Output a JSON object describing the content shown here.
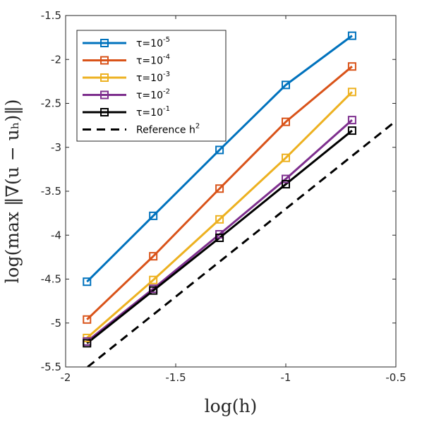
{
  "chart_data": {
    "type": "line",
    "title": "",
    "xlabel": "log(h)",
    "ylabel": "log(max ‖∇(u − uₕ)‖)",
    "xlim": [
      -2,
      -0.5
    ],
    "ylim": [
      -5.5,
      -1.5
    ],
    "xticks": [
      -2,
      -1.5,
      -1,
      -0.5
    ],
    "xtick_labels": [
      "-2",
      "-1.5",
      "-1",
      "-0.5"
    ],
    "yticks": [
      -5.5,
      -5,
      -4.5,
      -4,
      -3.5,
      -3,
      -2.5,
      -2,
      -1.5
    ],
    "ytick_labels": [
      "-5.5",
      "-5",
      "-4.5",
      "-4",
      "-3.5",
      "-3",
      "-2.5",
      "-2",
      "-1.5"
    ],
    "grid": false,
    "legend_position": "top-left",
    "x": [
      -1.903,
      -1.602,
      -1.301,
      -1.0,
      -0.699
    ],
    "series": [
      {
        "name_prefix": "τ=10",
        "name_exp": "-5",
        "color": "#0072BD",
        "marker": "square",
        "values": [
          -4.53,
          -3.78,
          -3.03,
          -2.29,
          -1.73
        ]
      },
      {
        "name_prefix": "τ=10",
        "name_exp": "-4",
        "color": "#D95319",
        "marker": "square",
        "values": [
          -4.96,
          -4.24,
          -3.47,
          -2.71,
          -2.08
        ]
      },
      {
        "name_prefix": "τ=10",
        "name_exp": "-3",
        "color": "#EDB120",
        "marker": "square",
        "values": [
          -5.17,
          -4.51,
          -3.82,
          -3.12,
          -2.37
        ]
      },
      {
        "name_prefix": "τ=10",
        "name_exp": "-2",
        "color": "#7E2F8E",
        "marker": "square",
        "values": [
          -5.21,
          -4.61,
          -3.99,
          -3.36,
          -2.69
        ]
      },
      {
        "name_prefix": "τ=10",
        "name_exp": "-1",
        "color": "#000000",
        "marker": "square",
        "values": [
          -5.23,
          -4.63,
          -4.03,
          -3.42,
          -2.81
        ]
      },
      {
        "name_prefix": "Reference h",
        "name_exp": "2",
        "color": "#000000",
        "marker": "none",
        "dashed": true,
        "x": [
          -1.9,
          -0.5
        ],
        "values": [
          -5.5,
          -2.7
        ]
      }
    ]
  }
}
